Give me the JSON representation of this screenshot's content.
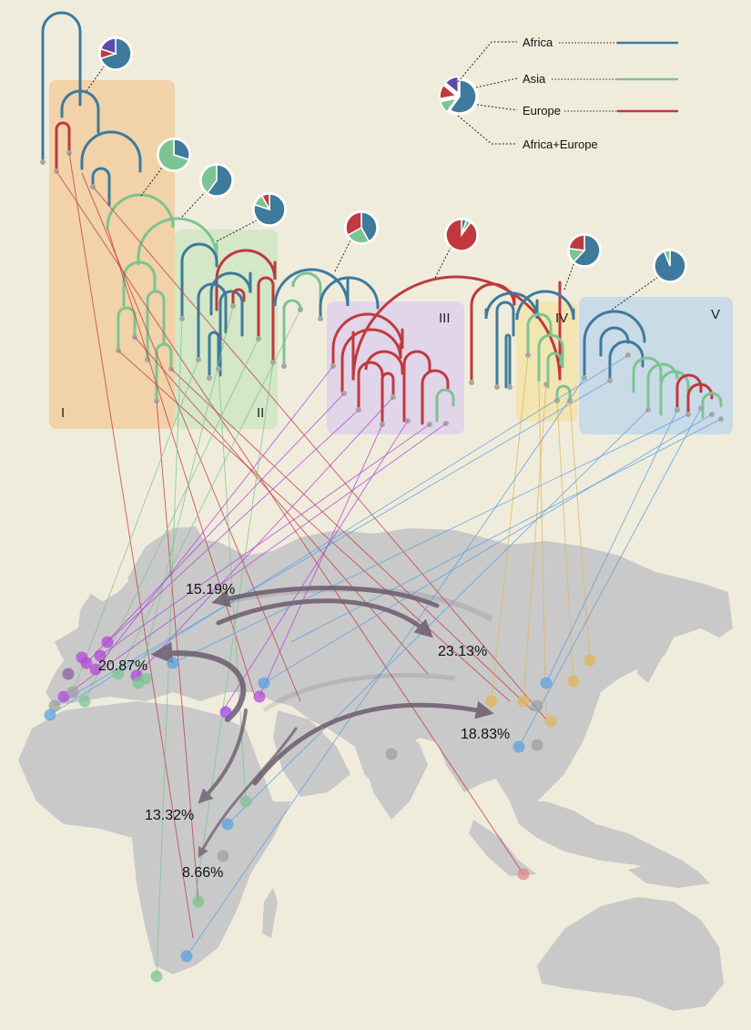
{
  "colors": {
    "background": "#f0ecdc",
    "land": "#c9c9c9",
    "africa": "#3e7a9c",
    "asia": "#7cc492",
    "europe": "#c0393e",
    "africa_europe": "#5b4aa8",
    "arrow": "#6d5c6e",
    "clade_I": "#f1cc9c",
    "clade_II": "#cde6c0",
    "clade_III": "#ddd0ec",
    "clade_IV": "#f4e3a8",
    "clade_V": "#bfd7ea",
    "link_I": "#c0393e",
    "link_II": "#7cc492",
    "link_III": "#b144d8",
    "link_IV": "#e0b45a",
    "link_V": "#5aa0e0"
  },
  "legend": {
    "africa": "Africa",
    "asia": "Asia",
    "europe": "Europe",
    "africa_europe": "Africa+Europe"
  },
  "clades": {
    "I": "I",
    "II": "II",
    "III": "III",
    "IV": "IV",
    "V": "V"
  },
  "migration": {
    "m1": "15.19%",
    "m2": "23.13%",
    "m3": "20.87%",
    "m4": "18.83%",
    "m5": "13.32%",
    "m6": "8.66%"
  },
  "pie_fractions": [
    {
      "africa": 0.7,
      "asia": 0.0,
      "europe": 0.1,
      "africa_europe": 0.2
    },
    {
      "africa": 0.3,
      "asia": 0.7,
      "europe": 0.0,
      "africa_europe": 0.0
    },
    {
      "africa": 0.6,
      "asia": 0.4,
      "europe": 0.0,
      "africa_europe": 0.0
    },
    {
      "africa": 0.8,
      "asia": 0.12,
      "europe": 0.08,
      "africa_europe": 0.0
    },
    {
      "africa": 0.42,
      "asia": 0.25,
      "europe": 0.33,
      "africa_europe": 0.0
    },
    {
      "africa": 0.05,
      "asia": 0.05,
      "europe": 0.9,
      "africa_europe": 0.0
    },
    {
      "africa": 0.62,
      "asia": 0.15,
      "europe": 0.23,
      "africa_europe": 0.0
    },
    {
      "africa": 0.94,
      "asia": 0.06,
      "europe": 0.0,
      "africa_europe": 0.0
    }
  ],
  "legend_pie": {
    "africa": 0.6,
    "asia": 0.12,
    "europe": 0.14,
    "africa_europe": 0.14
  }
}
